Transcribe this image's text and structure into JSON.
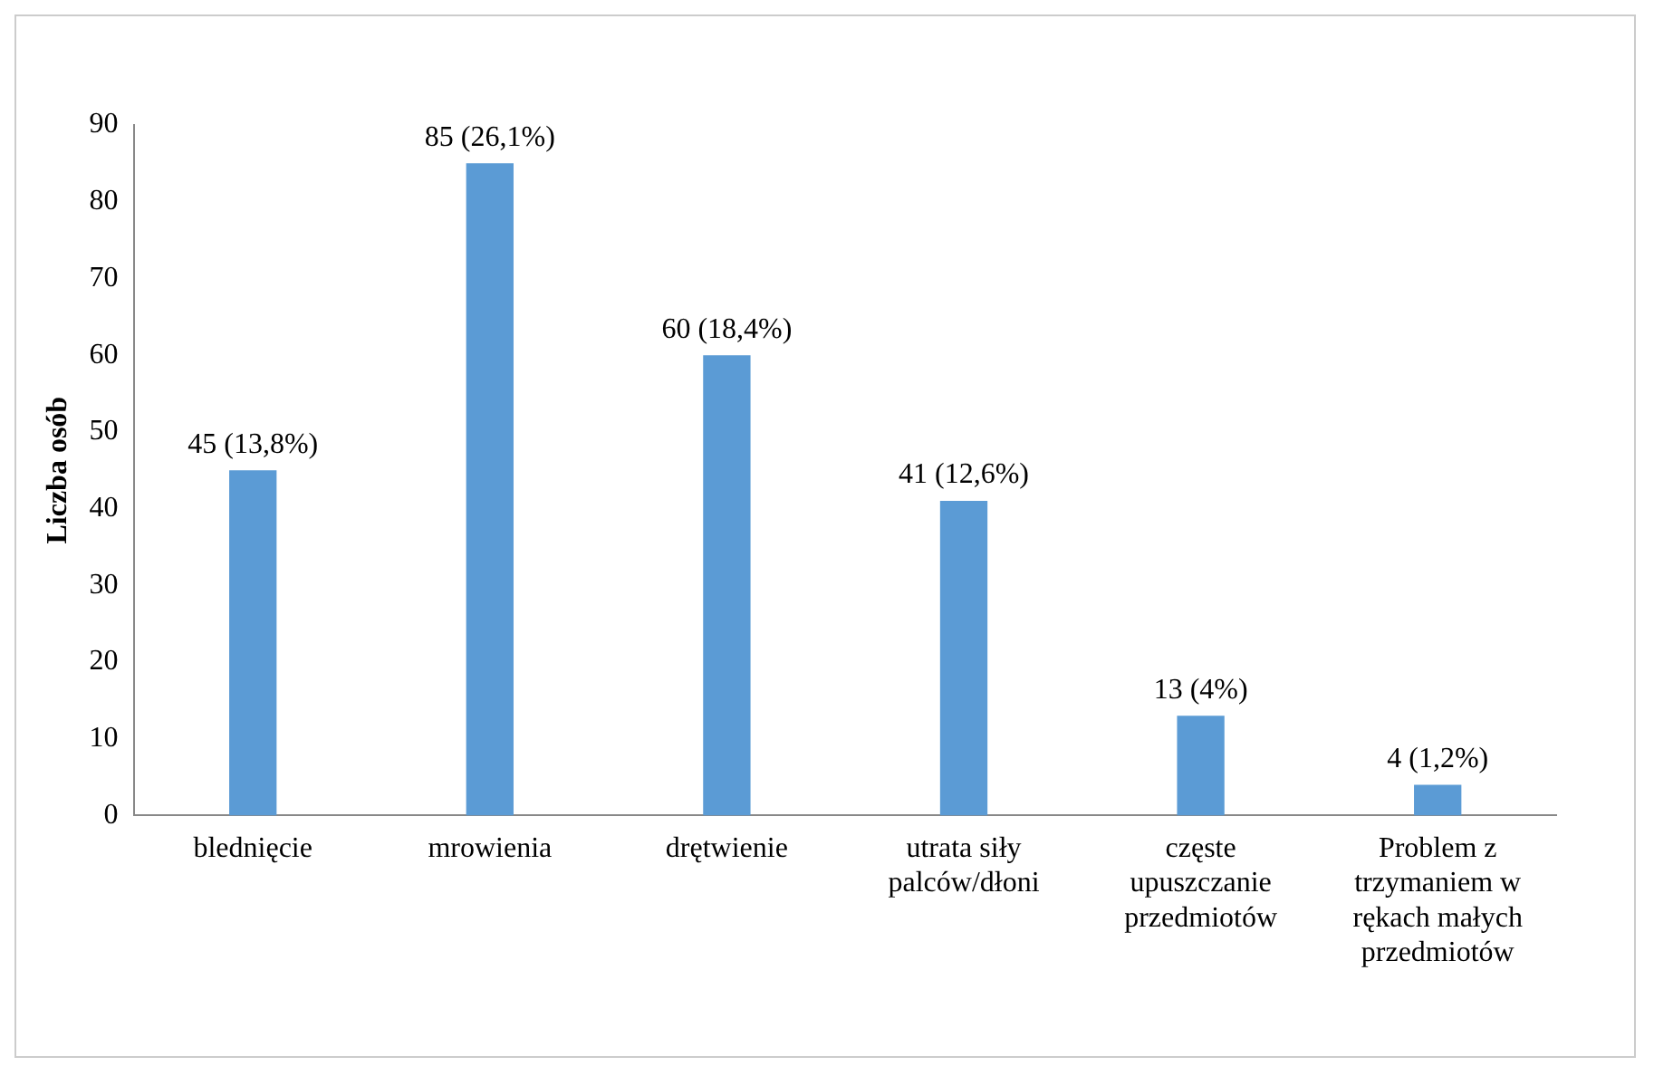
{
  "chart_data": {
    "type": "bar",
    "ylabel": "Liczba osób",
    "categories": [
      "blednięcie",
      "mrowienia",
      "drętwienie",
      "utrata siły palców/dłoni",
      "częste upuszczanie przedmiotów",
      "Problem z trzymaniem w rękach małych przedmiotów"
    ],
    "values": [
      45,
      85,
      60,
      41,
      13,
      4
    ],
    "value_labels": [
      "45 (13,8%)",
      "85 (26,1%)",
      "60 (18,4%)",
      "41 (12,6%)",
      "13 (4%)",
      "4 (1,2%)"
    ],
    "color": "#5b9bd5",
    "ylim": [
      0,
      90
    ],
    "yticks": [
      0,
      10,
      20,
      30,
      40,
      50,
      60,
      70,
      80,
      90
    ],
    "grid": false,
    "legend": false
  }
}
